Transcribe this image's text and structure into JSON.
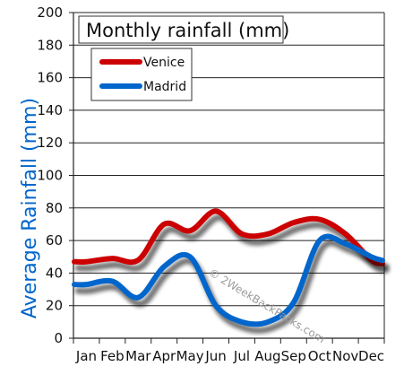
{
  "chart_data": {
    "type": "line",
    "title": "Monthly rainfall (mm)",
    "ylabel": "Average Rainfall (mm)",
    "xlabel": "",
    "categories": [
      "Jan",
      "Feb",
      "Mar",
      "Apr",
      "May",
      "Jun",
      "Jul",
      "Aug",
      "Sep",
      "Oct",
      "Nov",
      "Dec"
    ],
    "ylim": [
      0,
      200
    ],
    "yticks": [
      0,
      20,
      40,
      60,
      80,
      100,
      120,
      140,
      160,
      180,
      200
    ],
    "grid": true,
    "legend": "top-left",
    "series": [
      {
        "name": "Venice",
        "color": "#cc0000",
        "values": [
          47,
          49,
          48,
          70,
          66,
          78,
          64,
          64,
          71,
          73,
          64,
          48
        ]
      },
      {
        "name": "Madrid",
        "color": "#0066cc",
        "values": [
          33,
          35,
          25,
          44,
          50,
          20,
          10,
          10,
          22,
          60,
          58,
          50
        ]
      }
    ],
    "watermark": "© 2WeekBackPacks.com",
    "ylabel_color": "#0066cc"
  }
}
